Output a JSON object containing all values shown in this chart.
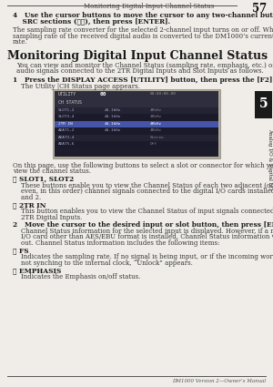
{
  "bg_color": "#f0ede8",
  "text_color": "#1a1a1a",
  "header_title": "Monitoring Digital Input Channel Status",
  "header_page": "57",
  "footer_text": "DM1000 Version 2—Owner’s Manual",
  "tab_text": "5",
  "tab_label": "Analog I/O & Digital I/O",
  "step4_line1": "4   Use the cursor buttons to move the cursor to any two-channel button in the",
  "step4_line2": "    SRC sections (ⓦⓧ), then press [ENTER].",
  "step4_body": "The sampling rate converter for the selected 2-channel input turns on or off. When on, the\nsampling rate of the received digital audio is converted to the DM1000’s current sampling\nrate.",
  "section_title": "Monitoring Digital Input Channel Status",
  "section_intro": "You can view and monitor the Channel Status (sampling rate, emphasis, etc.) of digital\naudio signals connected to the 2TR Digital Inputs and Slot Inputs as follows.",
  "step1_bold": "1   Press the DISPLAY ACCESS [UTILITY] button, then press the [F2] button.",
  "step1_body": "    The Utility |CH Status page appears.",
  "on_page_text": "On this page, use the following buttons to select a slot or connector for which you want to\nview the channel status.",
  "item1_title": "① SLOT1, SLOT2",
  "item1_body": "    These buttons enable you to view the Channel Status of each two adjacent (odd and\n    even, in this order) channel signals connected to the digital I/O cards installed in Slots 1\n    and 2.",
  "item2_title": "② 2TR IN",
  "item2_body": "    This button enables you to view the Channel Status of input signals connected to the\n    2TR Digital Inputs.",
  "step2_bold": "2   Move the cursor to the desired input or slot button, then press [ENTER].",
  "step2_body": "    Channel Status information for the selected input is displayed. However, if a mini-YGDAI\n    I/O card other than AES/EBU format is installed, Channel Status information will be grayed\n    out. Channel Status information includes the following items:",
  "item3_title": "③ FS",
  "item3_body": "    Indicates the sampling rate. If no signal is being input, or if the incoming wordclock is\n    not synching to the internal clock, “Unlock” appears.",
  "item4_title": "④ EMPHASIS",
  "item4_body": "    Indicates the Emphasis on/off status.",
  "screen_rows": [
    {
      "label": "SLOT1,2",
      "fs": "44.1kHz",
      "extra": "48kHz",
      "highlight": false
    },
    {
      "label": "SLOT3,4",
      "fs": "44.1kHz",
      "extra": "48kHz",
      "highlight": false
    },
    {
      "label": "2TR IN",
      "fs": "44.1kHz",
      "extra": "48kHz",
      "highlight": true
    },
    {
      "label": "ADAT1,2",
      "fs": "44.1kHz",
      "extra": "48kHz",
      "highlight": false
    },
    {
      "label": "ADAT3,4",
      "fs": "",
      "extra": "Stereo",
      "highlight": false
    },
    {
      "label": "ADAT5,6",
      "fs": "",
      "extra": "Off",
      "highlight": false
    }
  ]
}
